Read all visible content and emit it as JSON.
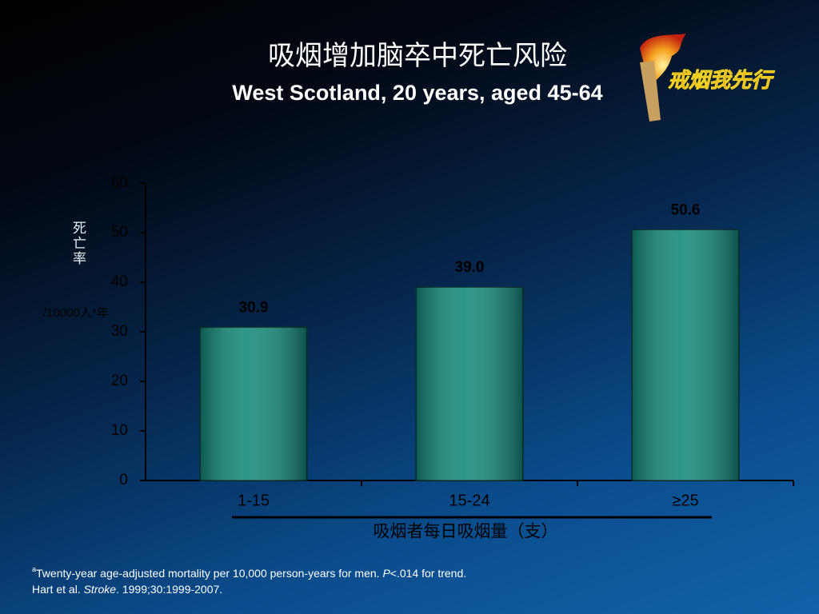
{
  "chart_data": {
    "type": "bar",
    "title": "吸烟增加脑卒中死亡风险",
    "subtitle": "West Scotland, 20 years, aged 45-64",
    "y_label": "死亡率",
    "y_unit": "/10000人*年",
    "x_label": "吸烟者每日吸烟量（支）",
    "categories": [
      "1-15",
      "15-24",
      "≥25"
    ],
    "values": [
      30.9,
      39.0,
      50.6
    ],
    "value_labels": [
      "30.9",
      "39.0",
      "50.6"
    ],
    "color": "#12897a",
    "ylim": [
      0,
      60
    ],
    "yticks": [
      0,
      10,
      20,
      30,
      40,
      50,
      60
    ],
    "grid": false
  },
  "logo_text": "戒烟我先行",
  "footnote_line1": [
    "a",
    "Twenty-year age-adjusted mortality per 10,000 person-years for men. ",
    "P",
    "<.014 for trend."
  ],
  "footnote_line2": [
    "Hart et al. ",
    "Stroke",
    ". 1999;30:1999-2007."
  ]
}
